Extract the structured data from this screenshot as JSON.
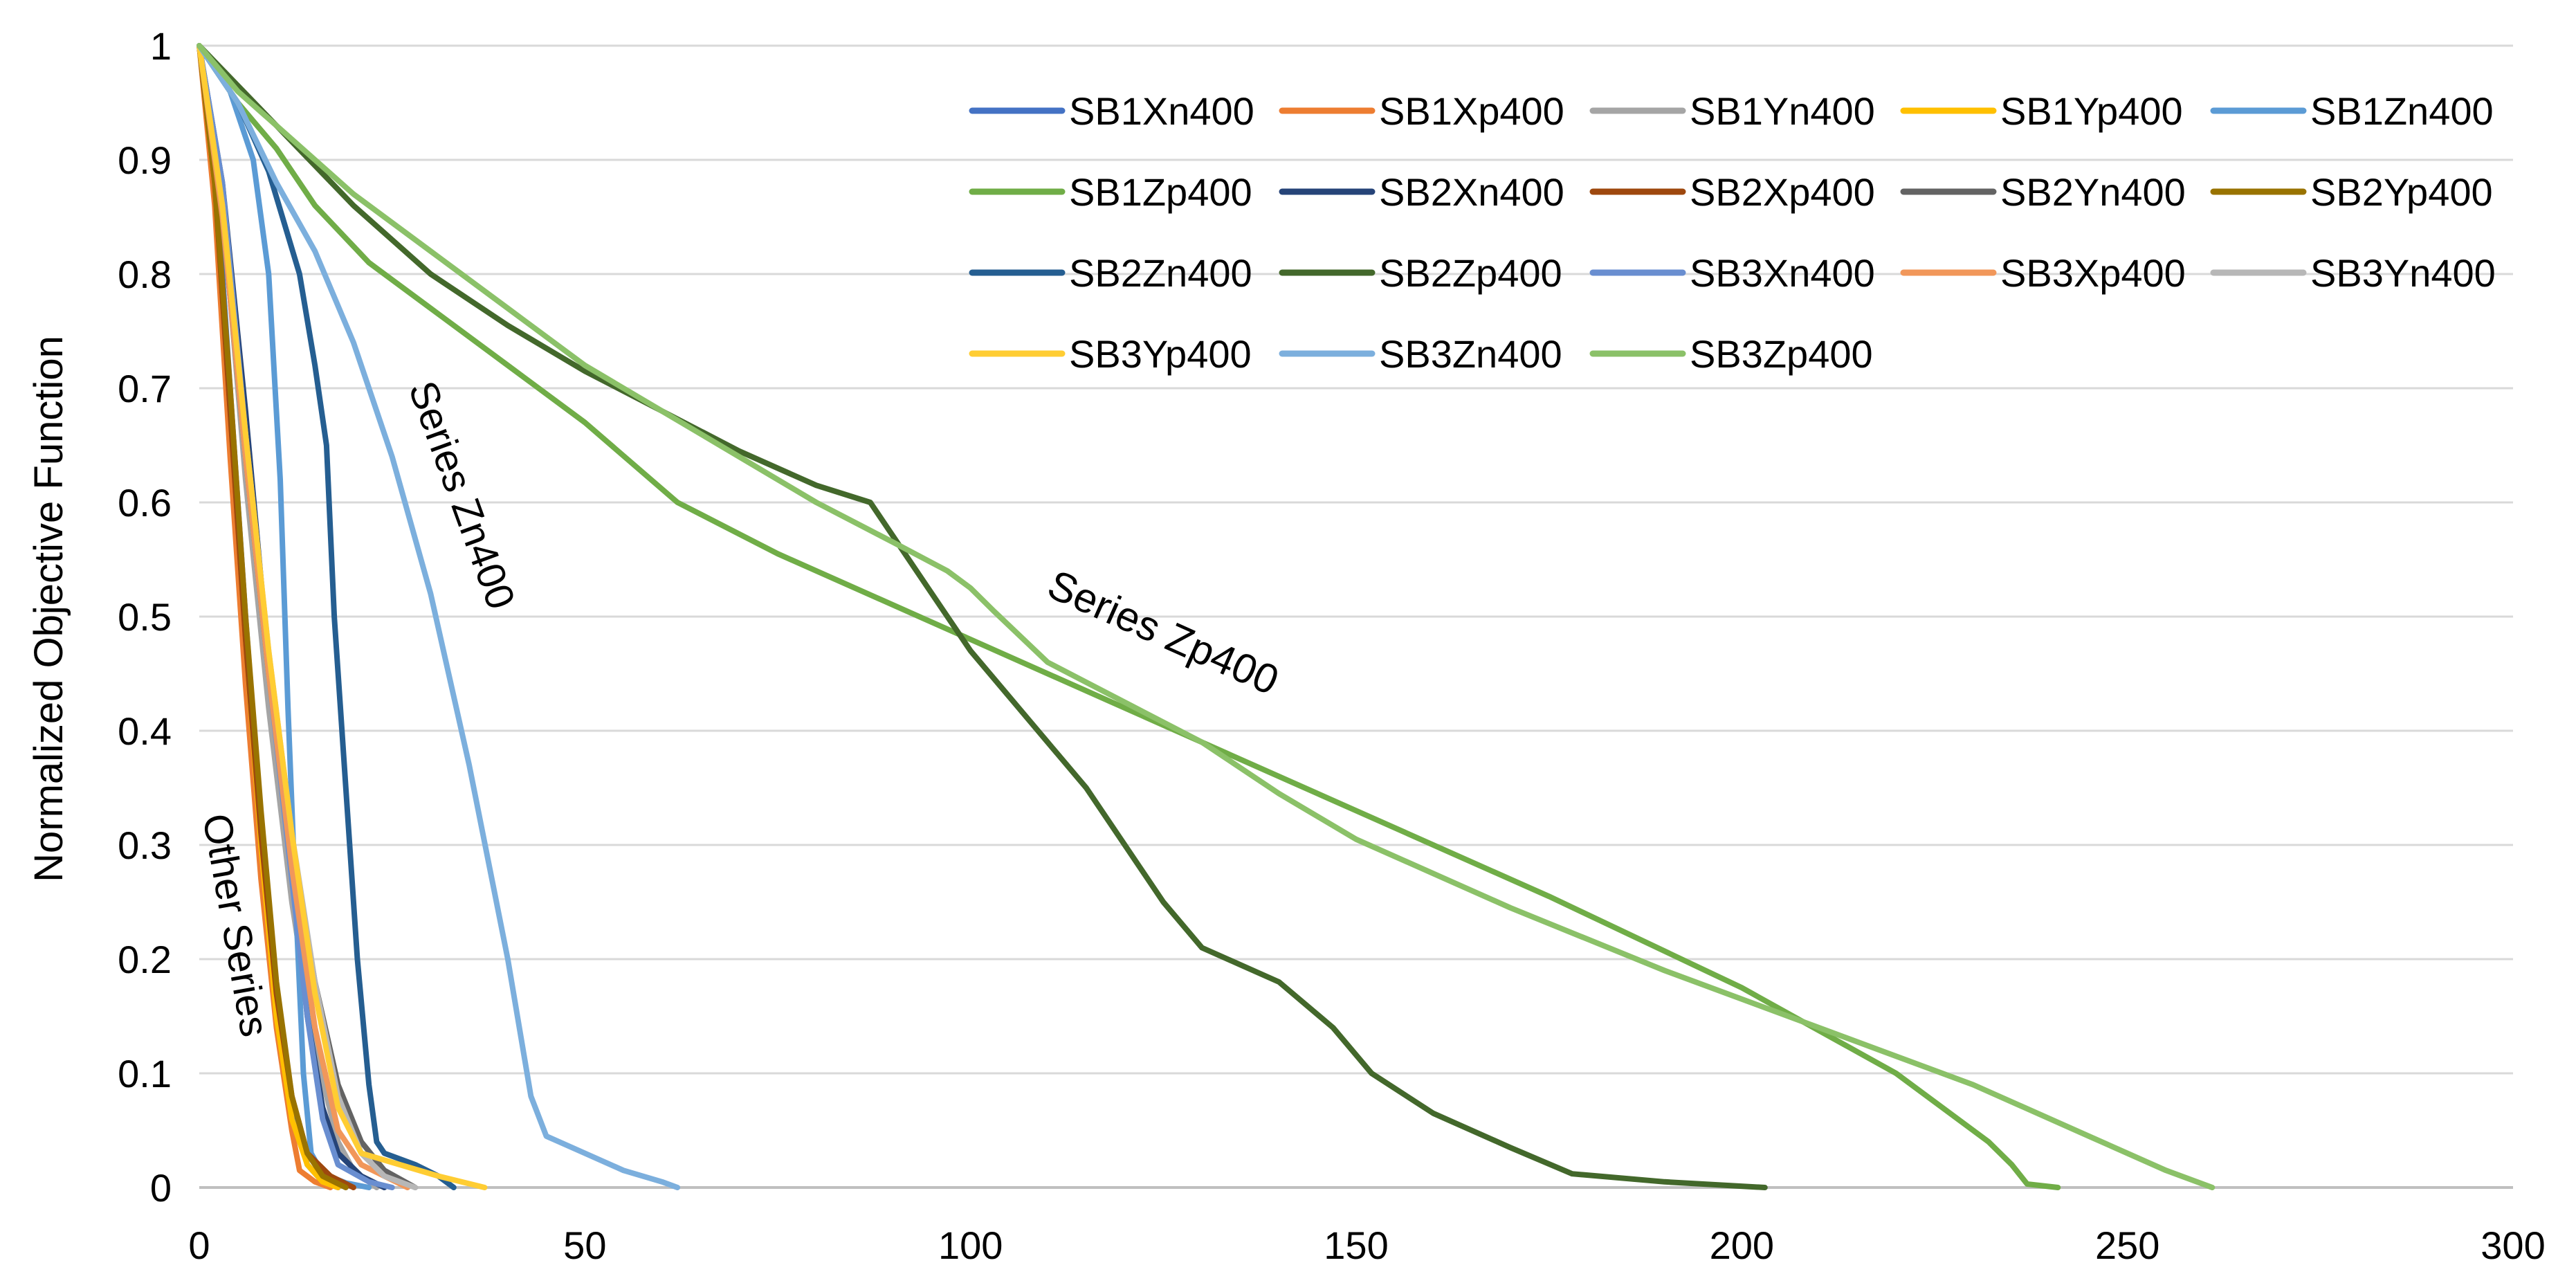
{
  "chart_data": {
    "type": "line",
    "title": "",
    "xlabel": "",
    "ylabel": "Normalized Objective Function",
    "xlim": [
      0,
      300
    ],
    "ylim": [
      0,
      1
    ],
    "x_ticks": [
      0,
      50,
      100,
      150,
      200,
      250,
      300
    ],
    "y_ticks": [
      0,
      0.1,
      0.2,
      0.3,
      0.4,
      0.5,
      0.6,
      0.7,
      0.8,
      0.9,
      1
    ],
    "x_tick_labels": [
      "0",
      "50",
      "100",
      "150",
      "200",
      "250",
      "300"
    ],
    "y_tick_labels": [
      "0",
      "0.1",
      "0.2",
      "0.3",
      "0.4",
      "0.5",
      "0.6",
      "0.7",
      "0.8",
      "0.9",
      "1"
    ],
    "grid": {
      "horizontal": true,
      "vertical": false
    },
    "legend_position": "top-right",
    "annotations": [
      {
        "text": "Series Zn400"
      },
      {
        "text": "Series Zp400"
      },
      {
        "text": "Other Series"
      }
    ],
    "series": [
      {
        "name": "SB1Xn400",
        "color": "#4472C4",
        "points": [
          [
            0,
            1
          ],
          [
            2,
            0.9
          ],
          [
            4,
            0.7
          ],
          [
            6,
            0.5
          ],
          [
            8,
            0.32
          ],
          [
            10,
            0.17
          ],
          [
            12,
            0.07
          ],
          [
            14,
            0.02
          ],
          [
            16,
            0.005
          ],
          [
            18,
            0
          ]
        ]
      },
      {
        "name": "SB1Xp400",
        "color": "#ED7D31",
        "points": [
          [
            0,
            1
          ],
          [
            2,
            0.86
          ],
          [
            4,
            0.64
          ],
          [
            6,
            0.44
          ],
          [
            8,
            0.27
          ],
          [
            10,
            0.14
          ],
          [
            12,
            0.05
          ],
          [
            13,
            0.015
          ],
          [
            15,
            0.005
          ],
          [
            17,
            0
          ]
        ]
      },
      {
        "name": "SB1Yn400",
        "color": "#A5A5A5",
        "points": [
          [
            0,
            1
          ],
          [
            3,
            0.86
          ],
          [
            6,
            0.62
          ],
          [
            9,
            0.42
          ],
          [
            12,
            0.25
          ],
          [
            15,
            0.12
          ],
          [
            18,
            0.04
          ],
          [
            20,
            0.015
          ],
          [
            23,
            0
          ]
        ]
      },
      {
        "name": "SB1Yp400",
        "color": "#FFC000",
        "points": [
          [
            0,
            1
          ],
          [
            2,
            0.88
          ],
          [
            4,
            0.68
          ],
          [
            6,
            0.48
          ],
          [
            8,
            0.3
          ],
          [
            10,
            0.15
          ],
          [
            12,
            0.06
          ],
          [
            14,
            0.02
          ],
          [
            16,
            0.005
          ],
          [
            18,
            0
          ]
        ]
      },
      {
        "name": "SB1Zn400",
        "color": "#5B9BD5",
        "points": [
          [
            0,
            1
          ],
          [
            4,
            0.96
          ],
          [
            7,
            0.9
          ],
          [
            9,
            0.8
          ],
          [
            10.5,
            0.62
          ],
          [
            11.5,
            0.42
          ],
          [
            12.5,
            0.25
          ],
          [
            13.5,
            0.1
          ],
          [
            14.5,
            0.03
          ],
          [
            16,
            0.012
          ],
          [
            19,
            0.004
          ],
          [
            22,
            0
          ]
        ]
      },
      {
        "name": "SB1Zp400",
        "color": "#70AD47",
        "points": [
          [
            0,
            1
          ],
          [
            5,
            0.95
          ],
          [
            10,
            0.91
          ],
          [
            15,
            0.86
          ],
          [
            22,
            0.81
          ],
          [
            30,
            0.77
          ],
          [
            40,
            0.72
          ],
          [
            50,
            0.67
          ],
          [
            62,
            0.6
          ],
          [
            75,
            0.555
          ],
          [
            100,
            0.48
          ],
          [
            125,
            0.405
          ],
          [
            150,
            0.33
          ],
          [
            175,
            0.255
          ],
          [
            200,
            0.175
          ],
          [
            220,
            0.1
          ],
          [
            232,
            0.04
          ],
          [
            235,
            0.02
          ],
          [
            237,
            0.003
          ],
          [
            241,
            0
          ]
        ]
      },
      {
        "name": "SB2Xn400",
        "color": "#264478",
        "points": [
          [
            0,
            1
          ],
          [
            3,
            0.88
          ],
          [
            6,
            0.68
          ],
          [
            9,
            0.46
          ],
          [
            12,
            0.28
          ],
          [
            14,
            0.15
          ],
          [
            16,
            0.07
          ],
          [
            18,
            0.03
          ],
          [
            21,
            0.01
          ],
          [
            24,
            0
          ]
        ]
      },
      {
        "name": "SB2Xp400",
        "color": "#9E480E",
        "points": [
          [
            0,
            1
          ],
          [
            2,
            0.88
          ],
          [
            4,
            0.68
          ],
          [
            6,
            0.48
          ],
          [
            8,
            0.31
          ],
          [
            10,
            0.17
          ],
          [
            12,
            0.08
          ],
          [
            14,
            0.03
          ],
          [
            17,
            0.01
          ],
          [
            20,
            0
          ]
        ]
      },
      {
        "name": "SB2Yn400",
        "color": "#636363",
        "points": [
          [
            0,
            1
          ],
          [
            3,
            0.85
          ],
          [
            6,
            0.64
          ],
          [
            9,
            0.45
          ],
          [
            12,
            0.3
          ],
          [
            15,
            0.18
          ],
          [
            18,
            0.09
          ],
          [
            21,
            0.04
          ],
          [
            24,
            0.015
          ],
          [
            28,
            0
          ]
        ]
      },
      {
        "name": "SB2Yp400",
        "color": "#997300",
        "points": [
          [
            0,
            1
          ],
          [
            2,
            0.88
          ],
          [
            4,
            0.7
          ],
          [
            6,
            0.5
          ],
          [
            8,
            0.33
          ],
          [
            10,
            0.18
          ],
          [
            12,
            0.08
          ],
          [
            14,
            0.03
          ],
          [
            16,
            0.01
          ],
          [
            19,
            0
          ]
        ]
      },
      {
        "name": "SB2Zn400",
        "color": "#255E91",
        "points": [
          [
            0,
            1
          ],
          [
            5,
            0.95
          ],
          [
            9,
            0.89
          ],
          [
            13,
            0.8
          ],
          [
            15,
            0.72
          ],
          [
            16.5,
            0.65
          ],
          [
            17.5,
            0.5
          ],
          [
            19,
            0.35
          ],
          [
            20.5,
            0.2
          ],
          [
            22,
            0.09
          ],
          [
            23,
            0.04
          ],
          [
            24,
            0.03
          ],
          [
            28,
            0.02
          ],
          [
            31,
            0.01
          ],
          [
            33,
            0
          ]
        ]
      },
      {
        "name": "SB2Zp400",
        "color": "#43682B",
        "points": [
          [
            0,
            1
          ],
          [
            10,
            0.93
          ],
          [
            20,
            0.86
          ],
          [
            30,
            0.8
          ],
          [
            40,
            0.755
          ],
          [
            50,
            0.715
          ],
          [
            60,
            0.68
          ],
          [
            70,
            0.645
          ],
          [
            80,
            0.615
          ],
          [
            87,
            0.6
          ],
          [
            90,
            0.57
          ],
          [
            95,
            0.52
          ],
          [
            100,
            0.47
          ],
          [
            105,
            0.43
          ],
          [
            110,
            0.39
          ],
          [
            115,
            0.35
          ],
          [
            120,
            0.3
          ],
          [
            125,
            0.25
          ],
          [
            130,
            0.21
          ],
          [
            140,
            0.18
          ],
          [
            147,
            0.14
          ],
          [
            152,
            0.1
          ],
          [
            160,
            0.065
          ],
          [
            170,
            0.035
          ],
          [
            178,
            0.012
          ],
          [
            190,
            0.005
          ],
          [
            203,
            0
          ]
        ]
      },
      {
        "name": "SB3Xn400",
        "color": "#698ED0",
        "points": [
          [
            0,
            1
          ],
          [
            3,
            0.88
          ],
          [
            6,
            0.66
          ],
          [
            9,
            0.45
          ],
          [
            12,
            0.27
          ],
          [
            14,
            0.15
          ],
          [
            16,
            0.06
          ],
          [
            18,
            0.02
          ],
          [
            22,
            0.005
          ],
          [
            25,
            0
          ]
        ]
      },
      {
        "name": "SB3Xp400",
        "color": "#F1975A",
        "points": [
          [
            0,
            1
          ],
          [
            3,
            0.85
          ],
          [
            6,
            0.64
          ],
          [
            9,
            0.45
          ],
          [
            12,
            0.28
          ],
          [
            15,
            0.14
          ],
          [
            18,
            0.05
          ],
          [
            21,
            0.02
          ],
          [
            24,
            0.01
          ],
          [
            27,
            0
          ]
        ]
      },
      {
        "name": "SB3Yn400",
        "color": "#B7B7B7",
        "points": [
          [
            0,
            1
          ],
          [
            3,
            0.86
          ],
          [
            6,
            0.66
          ],
          [
            9,
            0.47
          ],
          [
            12,
            0.31
          ],
          [
            15,
            0.18
          ],
          [
            18,
            0.08
          ],
          [
            21,
            0.03
          ],
          [
            24,
            0.01
          ],
          [
            28,
            0
          ]
        ]
      },
      {
        "name": "SB3Yp400",
        "color": "#FFCD33",
        "points": [
          [
            0,
            1
          ],
          [
            3,
            0.86
          ],
          [
            6,
            0.66
          ],
          [
            9,
            0.47
          ],
          [
            12,
            0.31
          ],
          [
            15,
            0.17
          ],
          [
            18,
            0.07
          ],
          [
            21,
            0.03
          ],
          [
            26,
            0.02
          ],
          [
            31,
            0.01
          ],
          [
            37,
            0
          ]
        ]
      },
      {
        "name": "SB3Zn400",
        "color": "#7CAFDD",
        "points": [
          [
            0,
            1
          ],
          [
            5,
            0.95
          ],
          [
            10,
            0.88
          ],
          [
            15,
            0.82
          ],
          [
            20,
            0.74
          ],
          [
            25,
            0.64
          ],
          [
            30,
            0.52
          ],
          [
            35,
            0.37
          ],
          [
            40,
            0.2
          ],
          [
            43,
            0.08
          ],
          [
            45,
            0.045
          ],
          [
            50,
            0.03
          ],
          [
            55,
            0.015
          ],
          [
            60,
            0.005
          ],
          [
            62,
            0
          ]
        ]
      },
      {
        "name": "SB3Zp400",
        "color": "#8BC168",
        "points": [
          [
            0,
            1
          ],
          [
            5,
            0.96
          ],
          [
            10,
            0.93
          ],
          [
            15,
            0.9
          ],
          [
            20,
            0.87
          ],
          [
            30,
            0.82
          ],
          [
            40,
            0.77
          ],
          [
            50,
            0.72
          ],
          [
            60,
            0.68
          ],
          [
            70,
            0.64
          ],
          [
            80,
            0.6
          ],
          [
            90,
            0.565
          ],
          [
            97,
            0.54
          ],
          [
            100,
            0.525
          ],
          [
            103,
            0.505
          ],
          [
            110,
            0.46
          ],
          [
            120,
            0.425
          ],
          [
            130,
            0.39
          ],
          [
            140,
            0.345
          ],
          [
            150,
            0.305
          ],
          [
            170,
            0.245
          ],
          [
            190,
            0.19
          ],
          [
            210,
            0.14
          ],
          [
            230,
            0.09
          ],
          [
            245,
            0.045
          ],
          [
            255,
            0.015
          ],
          [
            261,
            0
          ]
        ]
      }
    ]
  }
}
